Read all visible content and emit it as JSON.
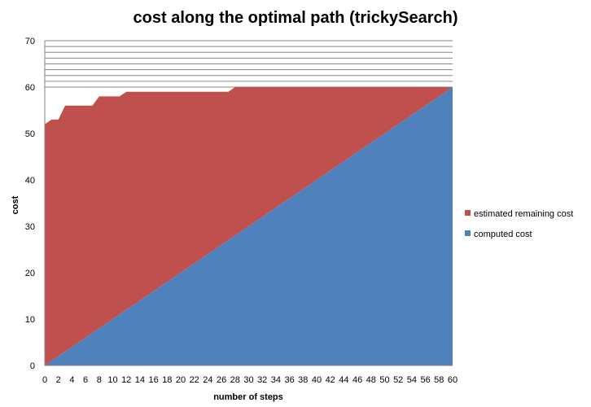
{
  "chart_data": {
    "type": "area",
    "title": "cost along the optimal path (trickySearch)",
    "xlabel": "number of steps",
    "ylabel": "cost",
    "xlim": [
      0,
      60
    ],
    "ylim": [
      0,
      70
    ],
    "x_ticks": [
      "0",
      "2",
      "4",
      "6",
      "8",
      "10",
      "12",
      "14",
      "16",
      "18",
      "20",
      "22",
      "24",
      "26",
      "28",
      "30",
      "32",
      "34",
      "36",
      "38",
      "40",
      "42",
      "44",
      "46",
      "48",
      "50",
      "52",
      "54",
      "56",
      "58",
      "60"
    ],
    "y_ticks": [
      "0",
      "10",
      "20",
      "30",
      "40",
      "50",
      "60",
      "70"
    ],
    "stacked": true,
    "grid": "horizontal lines above 60",
    "legend_position": "right",
    "x": [
      0,
      1,
      2,
      3,
      4,
      5,
      6,
      7,
      8,
      9,
      10,
      11,
      12,
      13,
      14,
      15,
      16,
      17,
      18,
      19,
      20,
      21,
      22,
      23,
      24,
      25,
      26,
      27,
      28,
      29,
      30,
      31,
      32,
      33,
      34,
      35,
      36,
      37,
      38,
      39,
      40,
      41,
      42,
      43,
      44,
      45,
      46,
      47,
      48,
      49,
      50,
      51,
      52,
      53,
      54,
      55,
      56,
      57,
      58,
      59,
      60
    ],
    "series": [
      {
        "name": "computed cost",
        "color": "#4F81BD",
        "values": [
          0,
          1,
          2,
          3,
          4,
          5,
          6,
          7,
          8,
          9,
          10,
          11,
          12,
          13,
          14,
          15,
          16,
          17,
          18,
          19,
          20,
          21,
          22,
          23,
          24,
          25,
          26,
          27,
          28,
          29,
          30,
          31,
          32,
          33,
          34,
          35,
          36,
          37,
          38,
          39,
          40,
          41,
          42,
          43,
          44,
          45,
          46,
          47,
          48,
          49,
          50,
          51,
          52,
          53,
          54,
          55,
          56,
          57,
          58,
          59,
          60
        ]
      },
      {
        "name": "estimated remaining cost",
        "color": "#C0504D",
        "values": [
          52,
          52,
          51,
          53,
          52,
          51,
          50,
          49,
          50,
          49,
          48,
          47,
          47,
          46,
          45,
          44,
          43,
          42,
          41,
          40,
          39,
          38,
          37,
          36,
          35,
          34,
          33,
          32,
          32,
          31,
          30,
          29,
          28,
          27,
          26,
          25,
          24,
          23,
          22,
          21,
          20,
          19,
          18,
          17,
          16,
          15,
          14,
          13,
          12,
          11,
          10,
          9,
          8,
          7,
          6,
          5,
          4,
          3,
          2,
          1,
          0
        ]
      }
    ],
    "total_top": [
      52,
      53,
      53,
      56,
      56,
      56,
      56,
      56,
      58,
      58,
      58,
      58,
      59,
      59,
      59,
      59,
      59,
      59,
      59,
      59,
      59,
      59,
      59,
      59,
      59,
      59,
      59,
      59,
      60,
      60,
      60,
      60,
      60,
      60,
      60,
      60,
      60,
      60,
      60,
      60,
      60,
      60,
      60,
      60,
      60,
      60,
      60,
      60,
      60,
      60,
      60,
      60,
      60,
      60,
      60,
      60,
      60,
      60,
      60,
      60,
      60
    ]
  }
}
